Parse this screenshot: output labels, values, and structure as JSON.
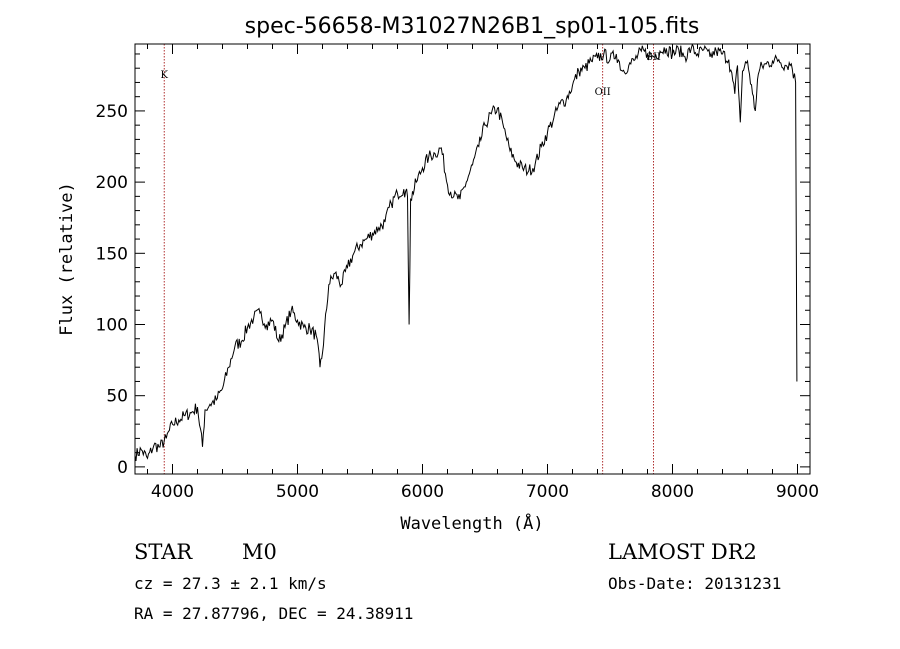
{
  "chart_data": {
    "type": "line",
    "title": "spec-56658-M31027N26B1_sp01-105.fits",
    "xlabel": "Wavelength (Å)",
    "ylabel": "Flux (relative)",
    "xlim": [
      3700,
      9100
    ],
    "ylim": [
      -5,
      297
    ],
    "x_ticks": [
      4000,
      5000,
      6000,
      7000,
      8000,
      9000
    ],
    "y_ticks": [
      0,
      50,
      100,
      150,
      200,
      250
    ],
    "spectral_lines": [
      {
        "name": "K",
        "wavelength": 3934
      },
      {
        "name": "OII",
        "wavelength": 7441
      },
      {
        "name": "SII",
        "wavelength": 7848
      }
    ],
    "series": [
      {
        "name": "flux",
        "points": [
          [
            3700,
            8
          ],
          [
            3750,
            12
          ],
          [
            3800,
            6
          ],
          [
            3850,
            15
          ],
          [
            3900,
            14
          ],
          [
            3950,
            20
          ],
          [
            4000,
            30
          ],
          [
            4050,
            33
          ],
          [
            4100,
            36
          ],
          [
            4150,
            38
          ],
          [
            4200,
            42
          ],
          [
            4240,
            14
          ],
          [
            4260,
            40
          ],
          [
            4300,
            44
          ],
          [
            4350,
            47
          ],
          [
            4400,
            55
          ],
          [
            4450,
            70
          ],
          [
            4500,
            85
          ],
          [
            4550,
            88
          ],
          [
            4600,
            98
          ],
          [
            4650,
            105
          ],
          [
            4700,
            108
          ],
          [
            4750,
            100
          ],
          [
            4800,
            103
          ],
          [
            4850,
            88
          ],
          [
            4900,
            98
          ],
          [
            4950,
            110
          ],
          [
            5000,
            103
          ],
          [
            5050,
            98
          ],
          [
            5100,
            97
          ],
          [
            5150,
            92
          ],
          [
            5180,
            70
          ],
          [
            5200,
            80
          ],
          [
            5250,
            128
          ],
          [
            5300,
            136
          ],
          [
            5350,
            128
          ],
          [
            5400,
            140
          ],
          [
            5450,
            150
          ],
          [
            5500,
            156
          ],
          [
            5550,
            160
          ],
          [
            5600,
            164
          ],
          [
            5650,
            168
          ],
          [
            5700,
            172
          ],
          [
            5750,
            185
          ],
          [
            5800,
            192
          ],
          [
            5850,
            195
          ],
          [
            5880,
            190
          ],
          [
            5893,
            100
          ],
          [
            5905,
            188
          ],
          [
            5950,
            200
          ],
          [
            6000,
            210
          ],
          [
            6050,
            218
          ],
          [
            6100,
            220
          ],
          [
            6150,
            224
          ],
          [
            6200,
            198
          ],
          [
            6250,
            190
          ],
          [
            6300,
            188
          ],
          [
            6350,
            200
          ],
          [
            6400,
            212
          ],
          [
            6450,
            225
          ],
          [
            6500,
            240
          ],
          [
            6550,
            248
          ],
          [
            6600,
            252
          ],
          [
            6650,
            238
          ],
          [
            6700,
            222
          ],
          [
            6750,
            214
          ],
          [
            6800,
            210
          ],
          [
            6850,
            208
          ],
          [
            6900,
            212
          ],
          [
            6950,
            225
          ],
          [
            7000,
            235
          ],
          [
            7050,
            245
          ],
          [
            7100,
            255
          ],
          [
            7150,
            258
          ],
          [
            7200,
            268
          ],
          [
            7250,
            278
          ],
          [
            7300,
            280
          ],
          [
            7350,
            285
          ],
          [
            7400,
            287
          ],
          [
            7450,
            290
          ],
          [
            7500,
            286
          ],
          [
            7550,
            290
          ],
          [
            7600,
            278
          ],
          [
            7650,
            282
          ],
          [
            7700,
            286
          ],
          [
            7750,
            292
          ],
          [
            7800,
            290
          ],
          [
            7850,
            288
          ],
          [
            7900,
            292
          ],
          [
            7950,
            294
          ],
          [
            8000,
            290
          ],
          [
            8050,
            293
          ],
          [
            8100,
            288
          ],
          [
            8150,
            294
          ],
          [
            8200,
            290
          ],
          [
            8250,
            293
          ],
          [
            8300,
            288
          ],
          [
            8350,
            292
          ],
          [
            8400,
            290
          ],
          [
            8450,
            286
          ],
          [
            8498,
            262
          ],
          [
            8520,
            282
          ],
          [
            8542,
            242
          ],
          [
            8560,
            278
          ],
          [
            8600,
            285
          ],
          [
            8640,
            262
          ],
          [
            8662,
            250
          ],
          [
            8680,
            272
          ],
          [
            8700,
            280
          ],
          [
            8750,
            283
          ],
          [
            8800,
            285
          ],
          [
            8850,
            286
          ],
          [
            8900,
            282
          ],
          [
            8950,
            283
          ],
          [
            8985,
            270
          ],
          [
            8995,
            60
          ]
        ]
      }
    ]
  },
  "info": {
    "class": "STAR",
    "subclass": "M0",
    "survey": "LAMOST DR2",
    "cz": "cz = 27.3 ± 2.1 km/s",
    "obs_date": "Obs-Date: 20131231",
    "radec": "RA =  27.87796, DEC =  24.38911"
  }
}
